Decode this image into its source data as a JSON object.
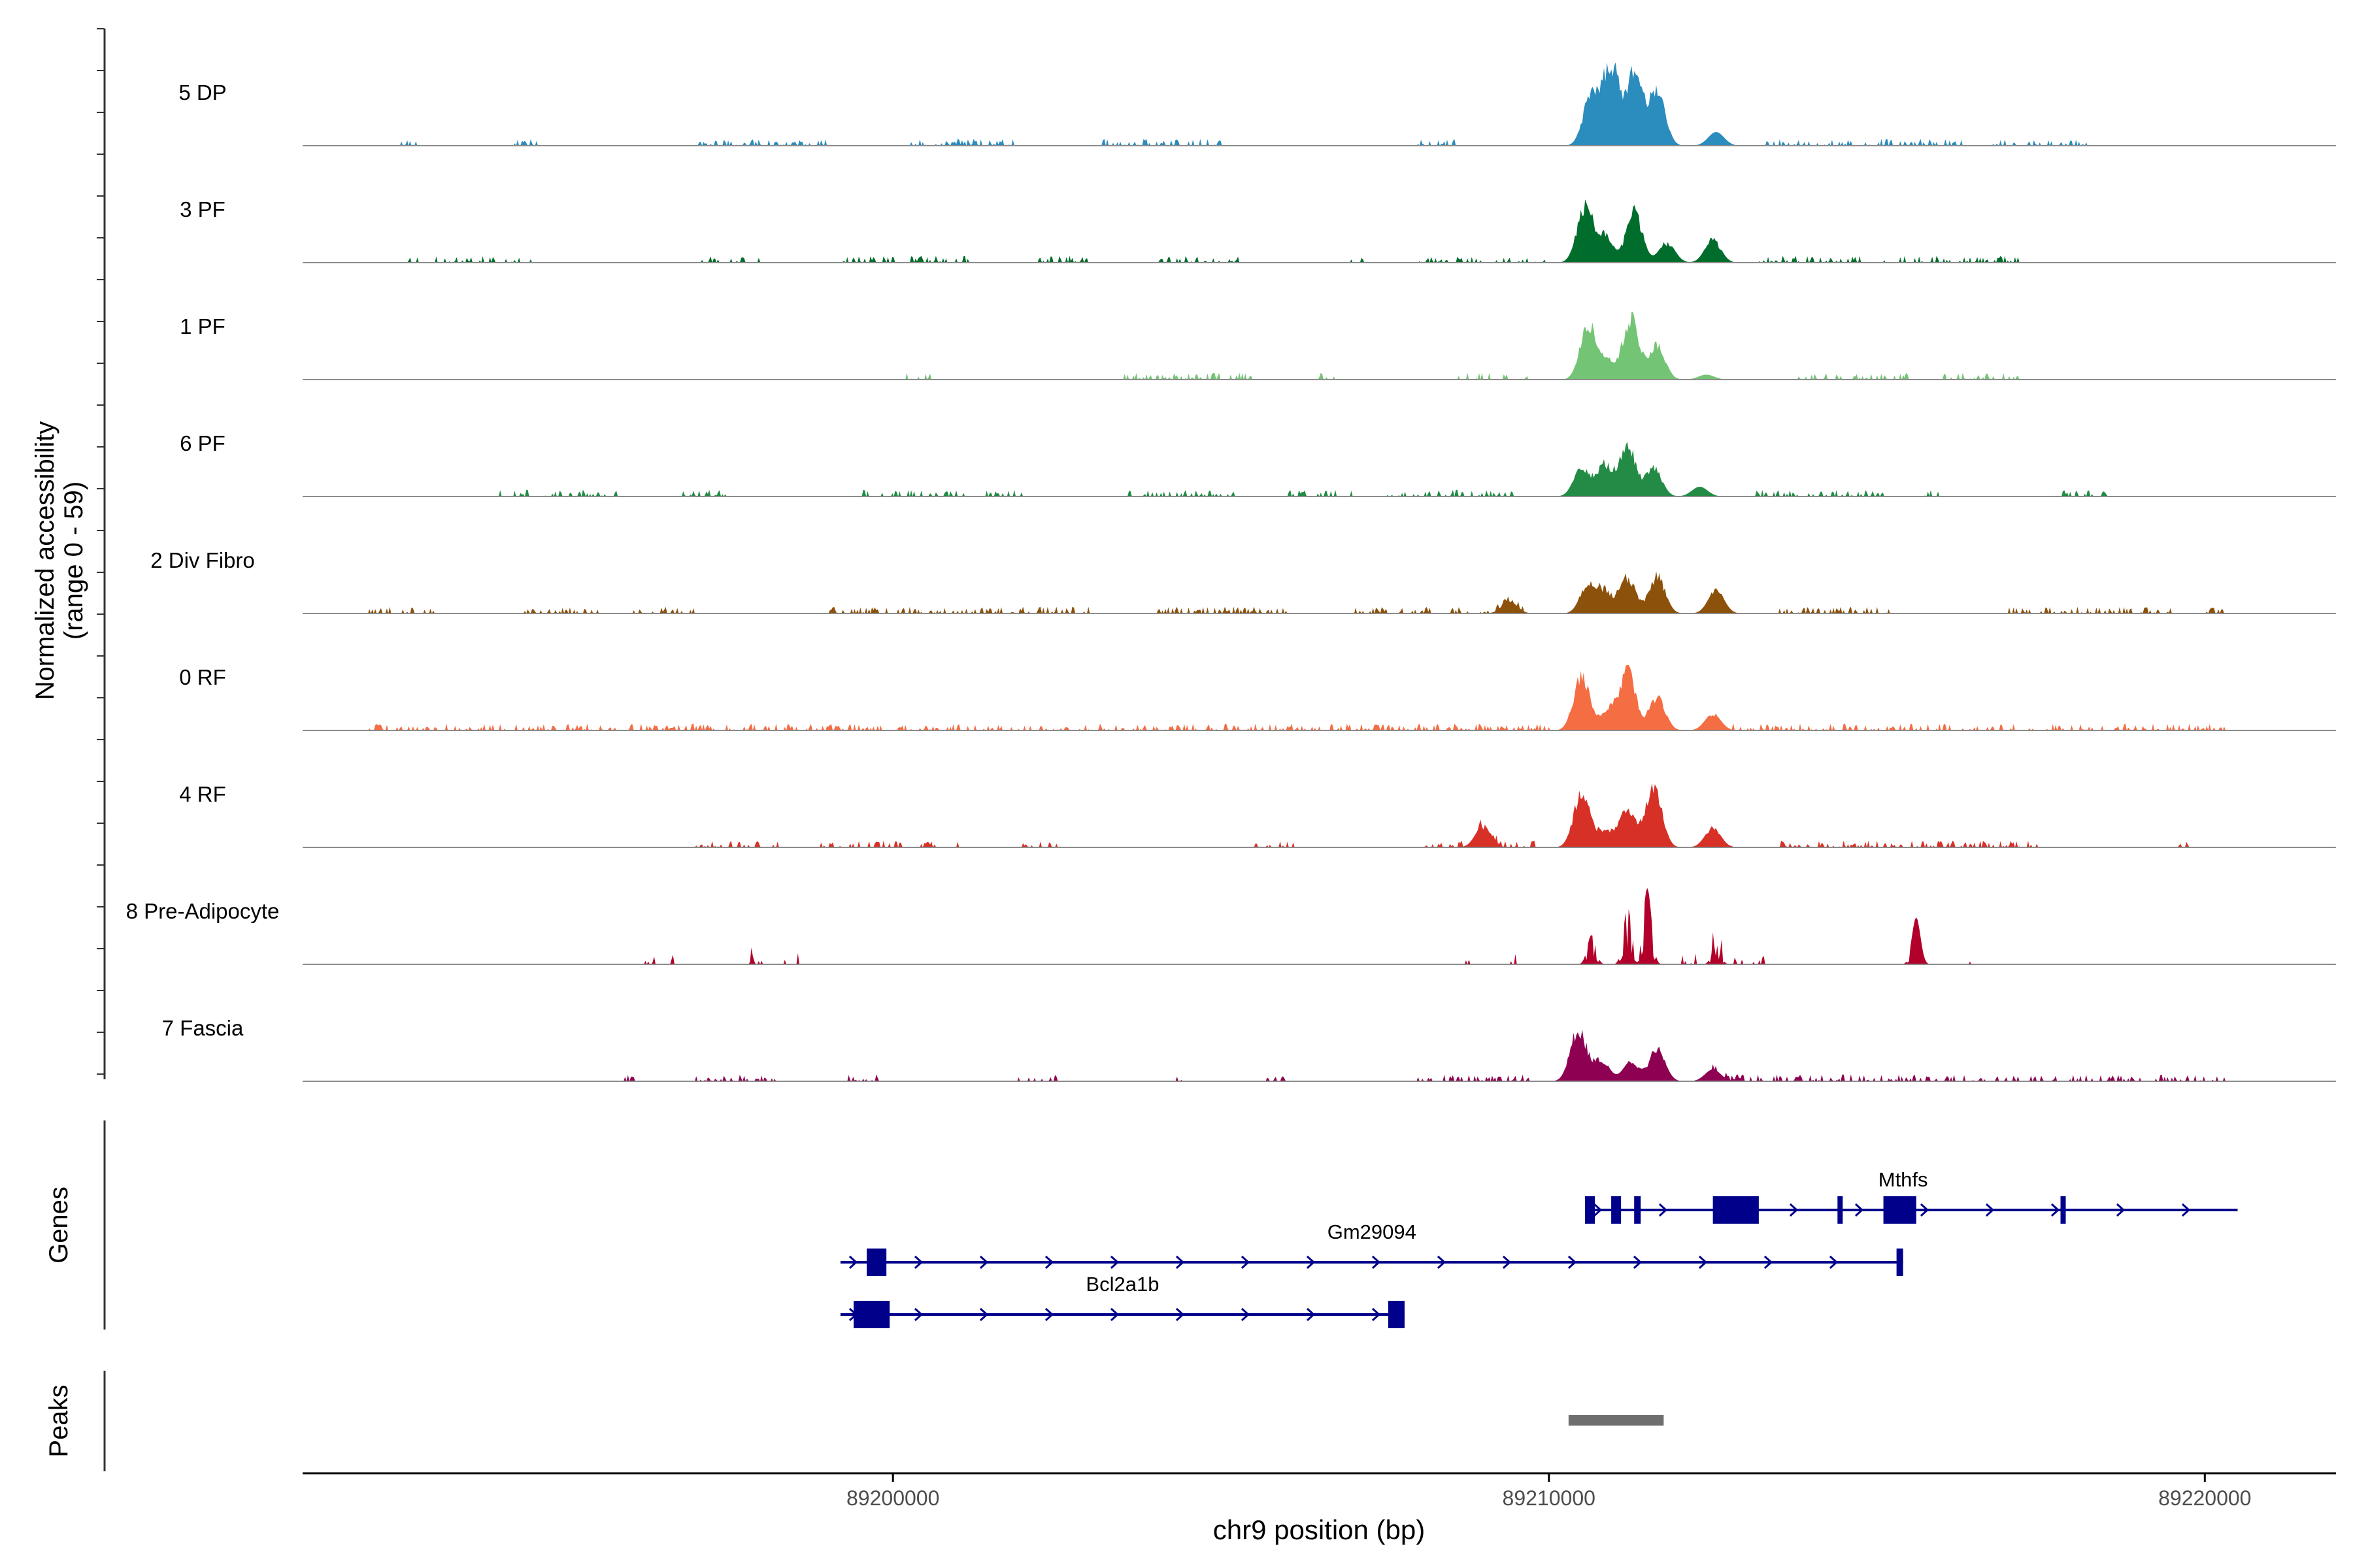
{
  "chart_data": {
    "type": "area",
    "genome_region": "chr9",
    "xlabel": "chr9 position (bp)",
    "xlim": [
      89191000,
      89222000
    ],
    "x_ticks": [
      89200000,
      89210000,
      89220000
    ],
    "x_tick_labels": [
      "89200000",
      "89210000",
      "89220000"
    ],
    "coverage": {
      "ylabel_line1": "Normalized accessibility",
      "ylabel_line2": "(range 0 - 59)",
      "yrange": [
        0,
        59
      ],
      "series": [
        {
          "name": "5 DP",
          "color": "#2B8CBE",
          "seed": 11,
          "peaks": [
            [
              89210650,
              0.58
            ],
            [
              89210950,
              0.85
            ],
            [
              89211300,
              0.76
            ],
            [
              89211650,
              0.62
            ],
            [
              89212550,
              0.14
            ]
          ],
          "bg_regions": [
            [
              89192500,
              89192800
            ],
            [
              89194200,
              89194600
            ],
            [
              89197000,
              89199000
            ],
            [
              89200200,
              89201900
            ],
            [
              89203200,
              89205000
            ],
            [
              89208000,
              89208600
            ],
            [
              89213300,
              89216300
            ],
            [
              89216700,
              89218200
            ]
          ]
        },
        {
          "name": "3 PF",
          "color": "#006D2C",
          "seed": 23,
          "peaks": [
            [
              89210550,
              0.58
            ],
            [
              89210850,
              0.28
            ],
            [
              89211300,
              0.54
            ],
            [
              89211800,
              0.21
            ],
            [
              89212500,
              0.24
            ]
          ],
          "bg_regions": [
            [
              89192600,
              89192800
            ],
            [
              89193000,
              89194500
            ],
            [
              89197000,
              89198000
            ],
            [
              89199200,
              89201200
            ],
            [
              89202200,
              89203000
            ],
            [
              89204000,
              89205300
            ],
            [
              89206700,
              89207200
            ],
            [
              89208000,
              89210000
            ],
            [
              89213100,
              89214800
            ],
            [
              89215100,
              89217200
            ]
          ]
        },
        {
          "name": "1 PF",
          "color": "#74C476",
          "seed": 37,
          "peaks": [
            [
              89210600,
              0.58
            ],
            [
              89210900,
              0.18
            ],
            [
              89211250,
              0.65
            ],
            [
              89211650,
              0.36
            ],
            [
              89212400,
              0.05
            ]
          ],
          "bg_regions": [
            [
              89200200,
              89200600
            ],
            [
              89203500,
              89205500
            ],
            [
              89206500,
              89206800
            ],
            [
              89208500,
              89209800
            ],
            [
              89213800,
              89215500
            ],
            [
              89216000,
              89217200
            ]
          ]
        },
        {
          "name": "6 PF",
          "color": "#238B45",
          "seed": 41,
          "peaks": [
            [
              89210500,
              0.3
            ],
            [
              89210850,
              0.34
            ],
            [
              89211200,
              0.55
            ],
            [
              89211600,
              0.3
            ],
            [
              89212300,
              0.1
            ]
          ],
          "bg_regions": [
            [
              89194000,
              89195800
            ],
            [
              89196800,
              89197500
            ],
            [
              89199500,
              89202000
            ],
            [
              89203500,
              89205200
            ],
            [
              89206000,
              89207000
            ],
            [
              89207500,
              89209500
            ],
            [
              89213100,
              89215200
            ],
            [
              89215500,
              89216000
            ],
            [
              89217800,
              89218600
            ]
          ]
        },
        {
          "name": "2 Div Fibro",
          "color": "#8C510A",
          "seed": 53,
          "peaks": [
            [
              89209400,
              0.12
            ],
            [
              89210600,
              0.3
            ],
            [
              89210850,
              0.22
            ],
            [
              89211200,
              0.38
            ],
            [
              89211650,
              0.4
            ],
            [
              89212550,
              0.24
            ]
          ],
          "bg_regions": [
            [
              89192000,
              89193000
            ],
            [
              89194300,
              89195500
            ],
            [
              89196000,
              89197000
            ],
            [
              89199000,
              89203000
            ],
            [
              89204000,
              89206000
            ],
            [
              89207000,
              89208200
            ],
            [
              89208500,
              89209600
            ],
            [
              89213500,
              89215200
            ],
            [
              89217000,
              89219500
            ],
            [
              89220000,
              89220300
            ]
          ]
        },
        {
          "name": "0 RF",
          "color": "#F46D43",
          "seed": 67,
          "peaks": [
            [
              89210500,
              0.58
            ],
            [
              89210900,
              0.22
            ],
            [
              89211200,
              0.62
            ],
            [
              89211650,
              0.36
            ],
            [
              89212500,
              0.17
            ]
          ],
          "bg_regions": [
            [
              89192000,
              89210000
            ],
            [
              89212800,
              89220300
            ]
          ]
        },
        {
          "name": "4 RF",
          "color": "#D73027",
          "seed": 71,
          "peaks": [
            [
              89209000,
              0.22
            ],
            [
              89210500,
              0.58
            ],
            [
              89210850,
              0.18
            ],
            [
              89211200,
              0.4
            ],
            [
              89211600,
              0.68
            ],
            [
              89212500,
              0.2
            ]
          ],
          "bg_regions": [
            [
              89197000,
              89198300
            ],
            [
              89198800,
              89201000
            ],
            [
              89201800,
              89202500
            ],
            [
              89205500,
              89206200
            ],
            [
              89208000,
              89209800
            ],
            [
              89213500,
              89217500
            ],
            [
              89219500,
              89219800
            ]
          ]
        },
        {
          "name": "8 Pre-Adipocyte",
          "color": "#B2002A",
          "seed": 83,
          "style": "spikes",
          "peaks": [
            [
              89210650,
              0.3
            ],
            [
              89211200,
              0.58
            ],
            [
              89211500,
              0.78
            ],
            [
              89212550,
              0.2
            ],
            [
              89215600,
              0.48
            ]
          ],
          "bg_regions": [
            [
              89196200,
              89196400
            ],
            [
              89196600,
              89196700
            ],
            [
              89197800,
              89198000
            ],
            [
              89198300,
              89198600
            ],
            [
              89208700,
              89208800
            ],
            [
              89209300,
              89209500
            ],
            [
              89212000,
              89212300
            ],
            [
              89212500,
              89212700
            ],
            [
              89212800,
              89213300
            ],
            [
              89216000,
              89216200
            ],
            [
              89216400,
              89216500
            ]
          ]
        },
        {
          "name": "7 Fascia",
          "color": "#8E0152",
          "seed": 97,
          "peaks": [
            [
              89210450,
              0.55
            ],
            [
              89210800,
              0.22
            ],
            [
              89211250,
              0.2
            ],
            [
              89211650,
              0.34
            ],
            [
              89212500,
              0.12
            ]
          ],
          "bg_regions": [
            [
              89195900,
              89196100
            ],
            [
              89197000,
              89198200
            ],
            [
              89199000,
              89199800
            ],
            [
              89201900,
              89202500
            ],
            [
              89204200,
              89204400
            ],
            [
              89205600,
              89206000
            ],
            [
              89208000,
              89209700
            ],
            [
              89212500,
              89220300
            ]
          ]
        }
      ]
    },
    "genes_track": {
      "label": "Genes",
      "genes": [
        {
          "name": "Mthfs",
          "row": 0,
          "start": 89210550,
          "end": 89220500,
          "strand": "+",
          "exons": [
            [
              89210550,
              89210700
            ],
            [
              89210950,
              89211100
            ],
            [
              89211300,
              89211400
            ],
            [
              89212500,
              89213200
            ],
            [
              89214400,
              89214450
            ],
            [
              89215100,
              89215600
            ],
            [
              89217800,
              89217850
            ]
          ]
        },
        {
          "name": "Gm29094",
          "row": 1,
          "start": 89199200,
          "end": 89215400,
          "strand": "+",
          "exons": [
            [
              89199600,
              89199900
            ],
            [
              89215300,
              89215400
            ]
          ]
        },
        {
          "name": "Bcl2a1b",
          "row": 2,
          "start": 89199200,
          "end": 89207800,
          "strand": "+",
          "exons": [
            [
              89199400,
              89199950
            ],
            [
              89207550,
              89207800
            ]
          ]
        }
      ]
    },
    "peaks_track": {
      "label": "Peaks",
      "regions": [
        [
          89210300,
          89211750
        ]
      ]
    }
  }
}
